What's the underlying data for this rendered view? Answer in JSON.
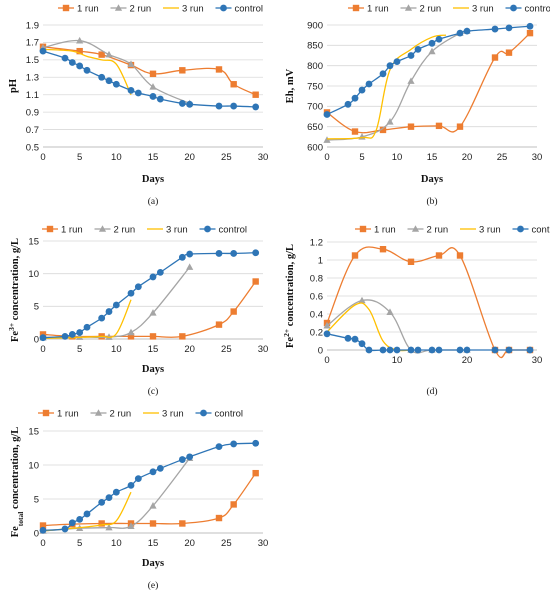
{
  "colors": {
    "run1": "#ED7D31",
    "run2": "#A5A5A5",
    "run3": "#FFC000",
    "control": "#2E75B6",
    "grid": "#D9D9D9"
  },
  "legend_labels": [
    "1 run",
    "2 run",
    "3 run",
    "control"
  ],
  "chart_data": [
    {
      "id": "a",
      "type": "line",
      "caption": "(a)",
      "xlabel": "Days",
      "ylabel": "pH",
      "xlim": [
        0,
        30
      ],
      "xticks": [
        0,
        5,
        10,
        15,
        20,
        25,
        30
      ],
      "ylim": [
        0.5,
        1.9
      ],
      "yticks": [
        "0.5",
        "0.7",
        "0.9",
        "1.1",
        "1.3",
        "1.5",
        "1.7",
        "1.9"
      ],
      "legend": "top-right",
      "series": [
        {
          "name": "1 run",
          "marker": "square",
          "x": [
            0,
            5,
            8,
            12,
            15,
            19,
            24,
            26,
            29
          ],
          "y": [
            1.65,
            1.6,
            1.56,
            1.44,
            1.34,
            1.38,
            1.39,
            1.22,
            1.1
          ]
        },
        {
          "name": "2 run",
          "marker": "triangle",
          "x": [
            0,
            5,
            9,
            12,
            15,
            20
          ],
          "y": [
            1.64,
            1.72,
            1.56,
            1.45,
            1.19,
            1.0
          ]
        },
        {
          "name": "3 run",
          "marker": "none",
          "x": [
            0,
            4,
            6,
            8,
            10,
            12
          ],
          "y": [
            1.62,
            1.6,
            1.54,
            1.5,
            1.45,
            1.1
          ]
        },
        {
          "name": "control",
          "marker": "circle",
          "x": [
            0,
            3,
            4,
            5,
            6,
            8,
            9,
            10,
            12,
            13,
            15,
            16,
            19,
            20,
            24,
            26,
            29
          ],
          "y": [
            1.6,
            1.52,
            1.47,
            1.43,
            1.38,
            1.3,
            1.26,
            1.22,
            1.15,
            1.12,
            1.08,
            1.05,
            1.0,
            0.99,
            0.97,
            0.97,
            0.96
          ]
        }
      ]
    },
    {
      "id": "b",
      "type": "line",
      "caption": "(b)",
      "xlabel": "Days",
      "ylabel": "Eh, mV",
      "xlim": [
        0,
        30
      ],
      "xticks": [
        0,
        5,
        10,
        15,
        20,
        25,
        30
      ],
      "ylim": [
        600,
        900
      ],
      "yticks": [
        "600",
        "650",
        "700",
        "750",
        "800",
        "850",
        "900"
      ],
      "legend": "top",
      "series": [
        {
          "name": "1 run",
          "marker": "square",
          "x": [
            0,
            4,
            8,
            12,
            16,
            19,
            24,
            26,
            29
          ],
          "y": [
            685,
            638,
            642,
            650,
            652,
            650,
            820,
            832,
            880
          ]
        },
        {
          "name": "2 run",
          "marker": "triangle",
          "x": [
            0,
            5,
            9,
            12,
            15,
            19,
            20
          ],
          "y": [
            617,
            625,
            662,
            762,
            835,
            880,
            885
          ]
        },
        {
          "name": "3 run",
          "marker": "none",
          "x": [
            0,
            5,
            7,
            9,
            12,
            15,
            17
          ],
          "y": [
            620,
            623,
            640,
            790,
            840,
            870,
            875
          ]
        },
        {
          "name": "control",
          "marker": "circle",
          "x": [
            0,
            3,
            4,
            5,
            6,
            8,
            9,
            10,
            12,
            13,
            15,
            16,
            19,
            20,
            24,
            26,
            29
          ],
          "y": [
            680,
            705,
            720,
            740,
            755,
            780,
            800,
            810,
            825,
            840,
            855,
            865,
            880,
            885,
            890,
            893,
            897
          ]
        }
      ]
    },
    {
      "id": "c",
      "type": "line",
      "caption": "(c)",
      "xlabel": "Days",
      "ylabel_base": "Fe",
      "ylabel_sup": "3+",
      "ylabel_rest": " concentration, g/L",
      "xlim": [
        0,
        30
      ],
      "xticks": [
        0,
        5,
        10,
        15,
        20,
        25,
        30
      ],
      "ylim": [
        0,
        15
      ],
      "yticks": [
        "0",
        "5",
        "10",
        "15"
      ],
      "legend": "top",
      "series": [
        {
          "name": "1 run",
          "marker": "square",
          "x": [
            0,
            4,
            8,
            12,
            15,
            19,
            24,
            26,
            29
          ],
          "y": [
            0.7,
            0.4,
            0.4,
            0.4,
            0.4,
            0.4,
            2.2,
            4.2,
            8.8
          ]
        },
        {
          "name": "2 run",
          "marker": "triangle",
          "x": [
            0,
            5,
            9,
            12,
            15,
            20
          ],
          "y": [
            0.2,
            0.3,
            0.3,
            1.0,
            4.0,
            11.0
          ]
        },
        {
          "name": "3 run",
          "marker": "none",
          "x": [
            0,
            4,
            6,
            8,
            10,
            12
          ],
          "y": [
            0.1,
            0.2,
            0.3,
            0.4,
            0.8,
            6.0
          ]
        },
        {
          "name": "control",
          "marker": "circle",
          "x": [
            0,
            3,
            4,
            5,
            6,
            8,
            9,
            10,
            12,
            13,
            15,
            16,
            19,
            20,
            24,
            26,
            29
          ],
          "y": [
            0.2,
            0.4,
            0.7,
            1.0,
            1.8,
            3.2,
            4.2,
            5.2,
            7.0,
            8.0,
            9.5,
            10.2,
            12.5,
            13.0,
            13.1,
            13.1,
            13.2
          ]
        }
      ]
    },
    {
      "id": "d",
      "type": "line",
      "caption": "(d)",
      "xlabel": "",
      "ylabel_base": "Fe",
      "ylabel_sup": "2+",
      "ylabel_rest": " concentration, g/L",
      "xlim": [
        0,
        30
      ],
      "xticks": [
        0,
        10,
        20,
        30
      ],
      "ylim": [
        0,
        1.2
      ],
      "yticks": [
        "0",
        "0.2",
        "0.4",
        "0.6",
        "0.8",
        "1",
        "1.2"
      ],
      "legend": "top",
      "series": [
        {
          "name": "1 run",
          "marker": "square",
          "x": [
            0,
            4,
            8,
            12,
            16,
            19,
            24,
            26,
            29
          ],
          "y": [
            0.3,
            1.05,
            1.12,
            0.98,
            1.05,
            1.05,
            0.0,
            0.0,
            0.0
          ]
        },
        {
          "name": "2 run",
          "marker": "triangle",
          "x": [
            0,
            5,
            9,
            12,
            15,
            20
          ],
          "y": [
            0.27,
            0.55,
            0.42,
            0.0,
            0.0,
            0.0
          ]
        },
        {
          "name": "3 run",
          "marker": "none",
          "x": [
            0,
            4,
            6,
            8,
            10,
            12
          ],
          "y": [
            0.2,
            0.5,
            0.45,
            0.1,
            0.0,
            0.0
          ]
        },
        {
          "name": "control",
          "marker": "circle",
          "x": [
            0,
            3,
            4,
            5,
            6,
            8,
            9,
            10,
            12,
            13,
            15,
            16,
            19,
            20,
            24,
            26,
            29
          ],
          "y": [
            0.18,
            0.13,
            0.12,
            0.07,
            0.0,
            0.0,
            0.0,
            0.0,
            0.0,
            0.0,
            0.0,
            0.0,
            0.0,
            0.0,
            0.0,
            0.0,
            0.0
          ]
        }
      ]
    },
    {
      "id": "e",
      "type": "line",
      "caption": "(e)",
      "xlabel": "Days",
      "ylabel_base": "Fe",
      "ylabel_sub": "total",
      "ylabel_rest": " concentration, g/L",
      "xlim": [
        0,
        30
      ],
      "xticks": [
        0,
        5,
        10,
        15,
        20,
        25,
        30
      ],
      "ylim": [
        0,
        15
      ],
      "yticks": [
        "0",
        "5",
        "10",
        "15"
      ],
      "legend": "top",
      "series": [
        {
          "name": "1 run",
          "marker": "square",
          "x": [
            0,
            4,
            8,
            12,
            15,
            19,
            24,
            26,
            29
          ],
          "y": [
            1.1,
            1.3,
            1.4,
            1.4,
            1.4,
            1.4,
            2.2,
            4.2,
            8.8
          ]
        },
        {
          "name": "2 run",
          "marker": "triangle",
          "x": [
            0,
            5,
            9,
            12,
            15,
            20
          ],
          "y": [
            0.3,
            0.7,
            0.8,
            1.0,
            4.0,
            11.0
          ]
        },
        {
          "name": "3 run",
          "marker": "none",
          "x": [
            0,
            4,
            6,
            8,
            10,
            12
          ],
          "y": [
            0.3,
            0.7,
            0.9,
            1.2,
            1.8,
            6.0
          ]
        },
        {
          "name": "control",
          "marker": "circle",
          "x": [
            0,
            3,
            4,
            5,
            6,
            8,
            9,
            10,
            12,
            13,
            15,
            16,
            19,
            20,
            24,
            26,
            29
          ],
          "y": [
            0.4,
            0.6,
            1.5,
            2.0,
            2.8,
            4.5,
            5.2,
            6.0,
            7.0,
            8.0,
            9.0,
            9.5,
            10.8,
            11.2,
            12.7,
            13.1,
            13.2
          ]
        }
      ]
    }
  ]
}
